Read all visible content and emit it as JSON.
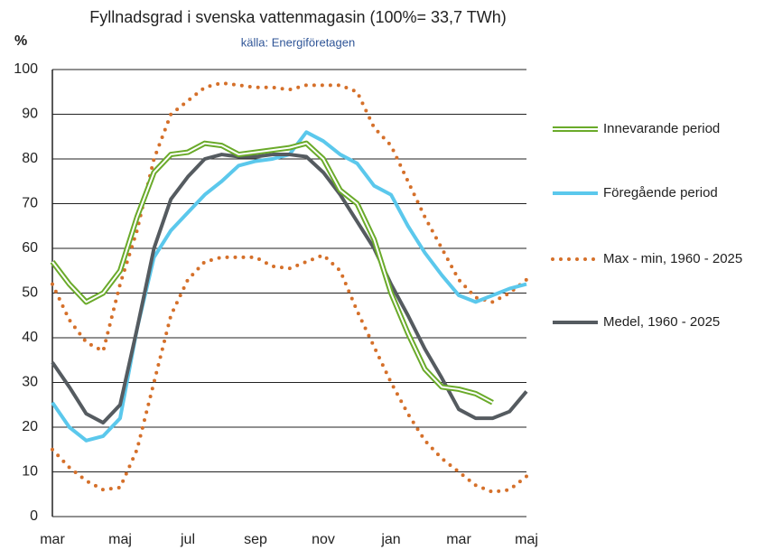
{
  "chart_data": {
    "type": "line",
    "title": "Fyllnadsgrad i svenska vattenmagasin (100%= 33,7 TWh)",
    "subtitle": "källa: Energiföretagen",
    "y_label": "%",
    "categories": [
      "mar",
      null,
      null,
      null,
      "maj",
      null,
      null,
      null,
      "jul",
      null,
      null,
      null,
      "sep",
      null,
      null,
      null,
      "nov",
      null,
      null,
      null,
      "jan",
      null,
      null,
      null,
      "mar",
      null,
      null,
      null,
      "maj"
    ],
    "ylim": [
      0,
      100
    ],
    "yticks": [
      0,
      10,
      20,
      30,
      40,
      50,
      60,
      70,
      80,
      90,
      100
    ],
    "grid": true,
    "legend": "right",
    "series": [
      {
        "name": "Innevarande period",
        "color": "#6aaa2a",
        "style": "double",
        "values": [
          57,
          52,
          48,
          50,
          55,
          67,
          77,
          81,
          81.5,
          83.5,
          83,
          81,
          81.5,
          82,
          82.5,
          83.5,
          80,
          73,
          70,
          62,
          50,
          41,
          33,
          29,
          28.5,
          27.5,
          25.5,
          null,
          null
        ]
      },
      {
        "name": "Föregående period",
        "color": "#5bc8ec",
        "style": "solid",
        "values": [
          25.5,
          20,
          17,
          18,
          22,
          42,
          58,
          64,
          68,
          72,
          75,
          78.5,
          79.5,
          80,
          81,
          86,
          84,
          81,
          79,
          74,
          72,
          65,
          59,
          54,
          49.5,
          48,
          49.5,
          51,
          52
        ]
      },
      {
        "name": "Max - min, 1960 - 2025",
        "color": "#d5702a",
        "style": "dotted",
        "values": [
          52,
          44,
          39,
          37,
          52,
          64,
          80,
          90,
          93,
          96,
          97,
          96.5,
          96,
          96,
          95.5,
          96.5,
          96.5,
          96.5,
          95,
          87,
          83,
          75,
          67,
          60,
          53,
          49,
          48,
          50,
          53
        ],
        "low": [
          15,
          11,
          8,
          6,
          6.5,
          15,
          30,
          45,
          53,
          57,
          58,
          58,
          58,
          56,
          55.5,
          57,
          58.5,
          55,
          46,
          38,
          30,
          23,
          17,
          13,
          10,
          7,
          5.5,
          6,
          9
        ]
      },
      {
        "name": "Medel, 1960 - 2025",
        "color": "#555b60",
        "style": "solid",
        "values": [
          34.5,
          29,
          23,
          21,
          25,
          42,
          60,
          71,
          76,
          80,
          81,
          80.5,
          80.5,
          81,
          81,
          80.5,
          77,
          72,
          66,
          60,
          52,
          45,
          37.5,
          31,
          24,
          22,
          22,
          23.5,
          28
        ]
      }
    ]
  }
}
